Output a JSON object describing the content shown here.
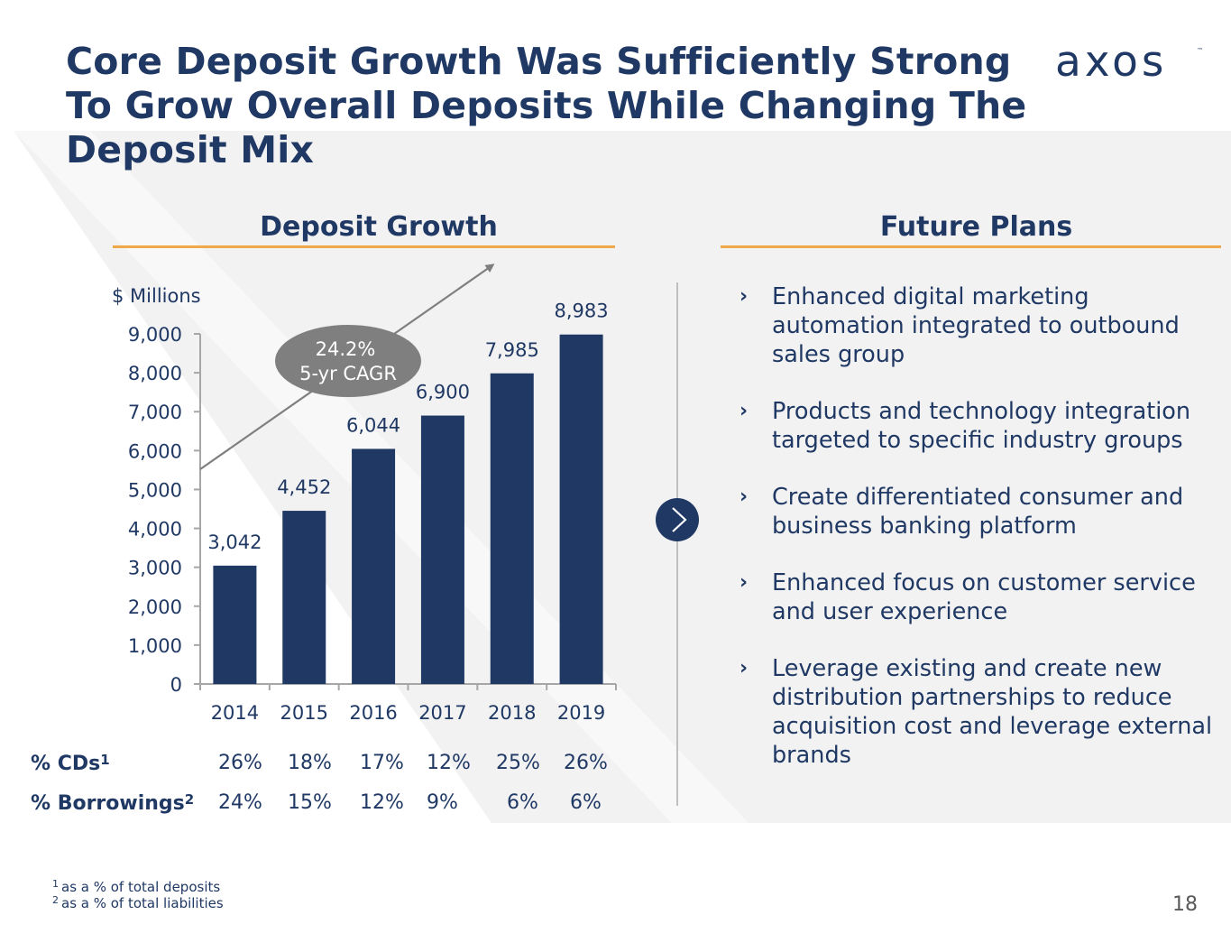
{
  "title": {
    "lines": [
      "Core Deposit Growth Was Sufficiently Strong",
      "To Grow Overall Deposits While Changing The",
      "Deposit Mix"
    ]
  },
  "logo": {
    "text": "axos",
    "tm": "™"
  },
  "colors": {
    "navy": "#1f3864",
    "accent": "#f0a848",
    "panel": "#f2f2f2",
    "arrow": "#7f7f7f"
  },
  "left_section": {
    "heading": "Deposit Growth"
  },
  "right_section": {
    "heading": "Future Plans"
  },
  "chart_data": {
    "type": "bar",
    "unit_label": "$ Millions",
    "categories": [
      "2014",
      "2015",
      "2016",
      "2017",
      "2018",
      "2019"
    ],
    "values": [
      3042,
      4452,
      6044,
      6900,
      7985,
      8983
    ],
    "value_labels": [
      "3,042",
      "4,452",
      "6,044",
      "6,900",
      "7,985",
      "8,983"
    ],
    "ylim": [
      0,
      9000
    ],
    "yticks": [
      0,
      1000,
      2000,
      3000,
      4000,
      5000,
      6000,
      7000,
      8000,
      9000
    ],
    "ytick_labels": [
      "0",
      "1,000",
      "2,000",
      "3,000",
      "4,000",
      "5,000",
      "6,000",
      "7,000",
      "8,000",
      "9,000"
    ],
    "grid": false,
    "bar_color": "#1f3864",
    "annotation": {
      "line1": "24.2%",
      "line2": "5-yr CAGR"
    }
  },
  "stats": {
    "cds": {
      "label": "% CDs",
      "sup": "1",
      "values": [
        "26%",
        "18%",
        "17%",
        "12%",
        "25%",
        "26%"
      ]
    },
    "borrowings": {
      "label": "% Borrowings",
      "sup": "2",
      "values": [
        "24%",
        "15%",
        "12%",
        "9%",
        "6%",
        "6%"
      ]
    }
  },
  "plans": {
    "bullet": "›",
    "items": [
      "Enhanced digital marketing automation integrated to outbound sales group",
      "Products and technology integration targeted to specific industry groups",
      "Create differentiated consumer and business banking platform",
      "Enhanced focus on customer service and user experience",
      "Leverage existing and create new distribution partnerships to reduce acquisition cost and leverage external brands"
    ]
  },
  "footnotes": [
    {
      "sup": "1",
      "text": "as a % of total deposits"
    },
    {
      "sup": "2",
      "text": "as a % of total liabilities"
    }
  ],
  "page_number": "18"
}
